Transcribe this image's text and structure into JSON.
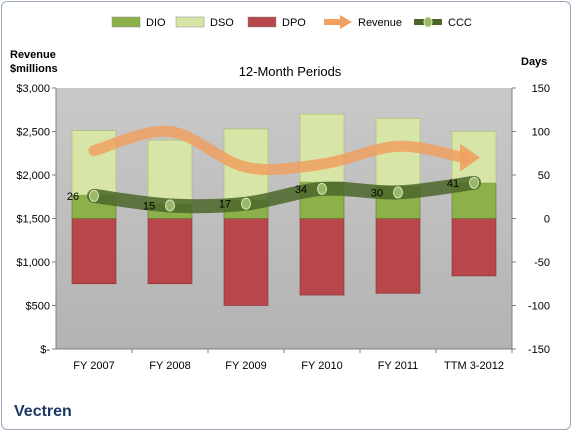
{
  "chart_data": {
    "type": "bar",
    "title": "12-Month Periods",
    "company": "Vectren",
    "left_axis_label_line1": "Revenue",
    "left_axis_label_line2": "$millions",
    "right_axis_label": "Days",
    "left_axis": {
      "min": 0,
      "max": 3000,
      "ticks": [
        "$-",
        "$500",
        "$1,000",
        "$1,500",
        "$2,000",
        "$2,500",
        "$3,000"
      ]
    },
    "right_axis": {
      "min": -150,
      "max": 150,
      "ticks": [
        "-150",
        "-100",
        "-50",
        "0",
        "50",
        "100",
        "150"
      ]
    },
    "categories": [
      "FY 2007",
      "FY 2008",
      "FY 2009",
      "FY 2010",
      "FY 2011",
      "TTM 3-2012"
    ],
    "legend": [
      "DIO",
      "DSO",
      "DPO",
      "Revenue",
      "CCC"
    ],
    "legend_position": "top",
    "grid": false,
    "series": [
      {
        "name": "DIO",
        "axis": "right",
        "values": [
          27,
          17,
          21,
          42,
          37,
          41
        ]
      },
      {
        "name": "DSO",
        "axis": "right",
        "values": [
          74,
          73,
          82,
          78,
          78,
          59
        ]
      },
      {
        "name": "DPO",
        "axis": "right",
        "values": [
          -75,
          -75,
          -100,
          -88,
          -86,
          -66
        ]
      },
      {
        "name": "Revenue",
        "axis": "left",
        "values": [
          2280,
          2500,
          2090,
          2125,
          2330,
          2200
        ]
      },
      {
        "name": "CCC",
        "axis": "right",
        "values": [
          26,
          15,
          17,
          34,
          30,
          41
        ]
      }
    ],
    "ccc_labels": [
      "26",
      "15",
      "17",
      "34",
      "30",
      "41"
    ],
    "colors": {
      "DIO": "#8cb04a",
      "DSO": "#d7e6a6",
      "DPO": "#b8474b",
      "Revenue": "#f0a060",
      "CCC": "#4a6628",
      "plot_bg": "#bfbfbf"
    }
  }
}
